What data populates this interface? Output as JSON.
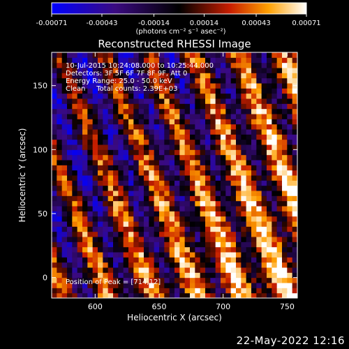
{
  "colorbar": {
    "ticks": [
      "-0.00071",
      "-0.00043",
      "-0.00014",
      "0.00014",
      "0.00043",
      "0.00071"
    ],
    "units": "(photons cm⁻² s⁻¹ asec⁻²)",
    "range": [
      -0.00071,
      0.00071
    ],
    "colormap": "blue-black-red-yellow-white"
  },
  "chart_data": {
    "type": "heatmap",
    "title": "Reconstructed RHESSI Image",
    "xlabel": "Heliocentric X (arcsec)",
    "ylabel": "Heliocentric Y (arcsec)",
    "xlim": [
      566,
      758
    ],
    "ylim": [
      -16,
      176
    ],
    "xticks": [
      600,
      650,
      700,
      750
    ],
    "yticks": [
      0,
      50,
      100,
      150
    ],
    "annotations": [
      "10-Jul-2015 10:24:08.000 to 10:25:44.000",
      "Detectors: 3F 5F 6F 7F 8F 9F, Att 0",
      "Energy Range: 25.0 - 50.0 keV",
      "Clean     Total counts: 2.39E+03"
    ],
    "peak_label": "Position of Peak = [714,12]",
    "peak_position": [
      714,
      12
    ],
    "grid": false,
    "pixel_size_arcsec": 4
  },
  "footer": {
    "date": "22-May-2022 12:16"
  },
  "colors": {
    "background": "#000000",
    "text": "#ffffff"
  }
}
